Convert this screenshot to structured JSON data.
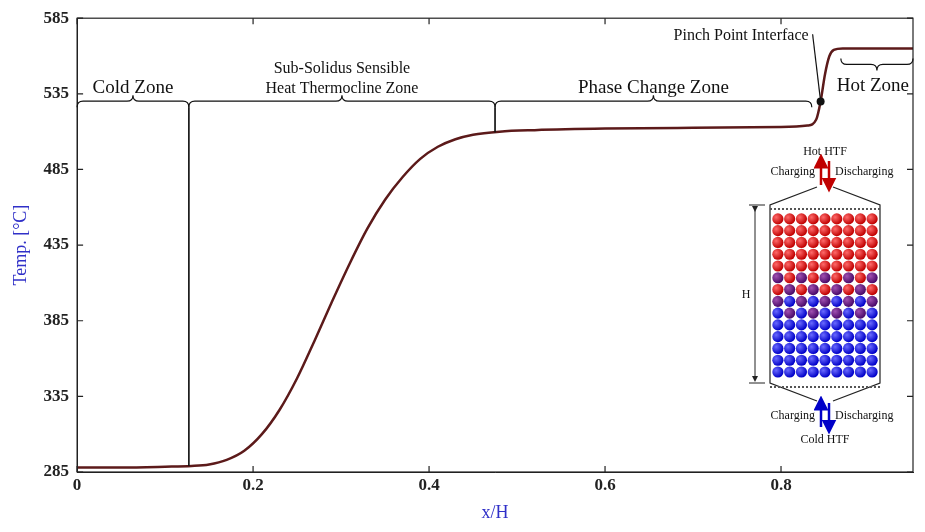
{
  "chart_data": {
    "type": "line",
    "x_label": "x/H",
    "y_label": "Temp. [°C]",
    "x": [
      0,
      0.05,
      0.1,
      0.13,
      0.15,
      0.17,
      0.19,
      0.21,
      0.23,
      0.25,
      0.27,
      0.29,
      0.31,
      0.33,
      0.35,
      0.37,
      0.39,
      0.41,
      0.43,
      0.45,
      0.48,
      0.52,
      0.6,
      0.7,
      0.8,
      0.83,
      0.84,
      0.845,
      0.85,
      0.855,
      0.86,
      0.87,
      0.95
    ],
    "values": [
      288,
      288,
      288.5,
      289,
      290,
      293,
      299,
      310,
      326,
      347,
      372,
      398,
      423,
      446,
      465,
      480,
      492,
      500,
      505,
      508,
      510,
      511,
      512,
      512.5,
      513,
      514,
      518,
      530,
      548,
      560,
      564,
      565,
      565
    ],
    "color": "#5c1a1a",
    "xlim": [
      0,
      0.95
    ],
    "xticks": [
      0,
      0.2,
      0.4,
      0.6,
      0.8
    ],
    "ylim": [
      285,
      585
    ],
    "yticks": [
      285,
      335,
      385,
      435,
      485,
      535,
      585
    ],
    "grid": false,
    "annotations": [
      {
        "text": "Cold Zone",
        "x": [
          0,
          0.127
        ]
      },
      {
        "text": [
          "Sub-Solidus Sensible",
          "Heat Thermocline Zone"
        ],
        "x": [
          0.127,
          0.475
        ]
      },
      {
        "text": "Phase Change Zone",
        "x": [
          0.475,
          0.835
        ]
      },
      {
        "text": "Pinch Point Interface",
        "x": 0.845
      },
      {
        "text": "Hot Zone",
        "x": [
          0.868,
          0.95
        ]
      }
    ]
  },
  "inset": {
    "hot_label": "Hot HTF",
    "cold_label": "Cold HTF",
    "top_left": "Charging",
    "top_right": "Discharging",
    "bottom_left": "Charging",
    "bottom_right": "Discharging",
    "height_label": "H"
  }
}
